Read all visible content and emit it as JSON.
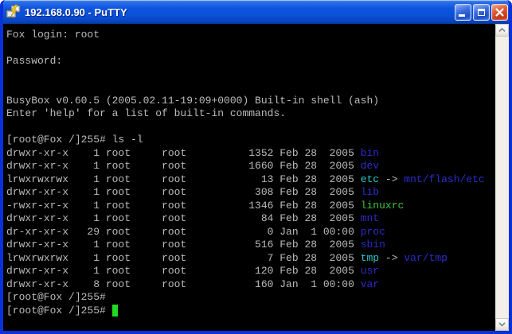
{
  "colors": {
    "borderBlue": "#0831D9",
    "titlebarBlue": "#0A50D8",
    "closeRed": "#D8502E",
    "controlBlue": "#2E64DC",
    "bg": "#000000",
    "fg": "#BBBBBB",
    "dir": "#2C2CC8",
    "link": "#2EC4C4",
    "exec": "#3CC23C",
    "cursor": "#22DB22",
    "scrollTrack": "#F2F0E9"
  },
  "titlebar": {
    "title": "192.168.0.90 - PuTTY",
    "icon": "putty-terminals-icon",
    "buttons": [
      {
        "name": "minimize-button",
        "icon": "minimize-icon"
      },
      {
        "name": "maximize-button",
        "icon": "maximize-icon"
      },
      {
        "name": "close-button",
        "icon": "close-icon"
      }
    ]
  },
  "scrollbar": {
    "up_icon": "chevron-up-icon",
    "down_icon": "chevron-down-icon"
  },
  "terminal": {
    "lines": [
      [
        {
          "t": "Fox login: root",
          "c": "fg"
        }
      ],
      [],
      [
        {
          "t": "Password:",
          "c": "fg"
        }
      ],
      [],
      [],
      [
        {
          "t": "BusyBox v0.60.5 (2005.02.11-19:09+0000) Built-in shell (ash)",
          "c": "fg"
        }
      ],
      [
        {
          "t": "Enter 'help' for a list of built-in commands.",
          "c": "fg"
        }
      ],
      [],
      [
        {
          "t": "[root@Fox /]255# ls -l",
          "c": "fg"
        }
      ],
      [
        {
          "t": "drwxr-xr-x    1 root     root          1352 Feb 28  2005 ",
          "c": "fg"
        },
        {
          "t": "bin",
          "c": "dir"
        }
      ],
      [
        {
          "t": "drwxr-xr-x    1 root     root          1660 Feb 28  2005 ",
          "c": "fg"
        },
        {
          "t": "dev",
          "c": "dir"
        }
      ],
      [
        {
          "t": "lrwxrwxrwx    1 root     root            13 Feb 28  2005 ",
          "c": "fg"
        },
        {
          "t": "etc",
          "c": "link"
        },
        {
          "t": " -> ",
          "c": "fg"
        },
        {
          "t": "mnt/flash/etc",
          "c": "dir"
        }
      ],
      [
        {
          "t": "drwxr-xr-x    1 root     root           308 Feb 28  2005 ",
          "c": "fg"
        },
        {
          "t": "lib",
          "c": "dir"
        }
      ],
      [
        {
          "t": "-rwxr-xr-x    1 root     root          1346 Feb 28  2005 ",
          "c": "fg"
        },
        {
          "t": "linuxrc",
          "c": "exec"
        }
      ],
      [
        {
          "t": "drwxr-xr-x    1 root     root            84 Feb 28  2005 ",
          "c": "fg"
        },
        {
          "t": "mnt",
          "c": "dir"
        }
      ],
      [
        {
          "t": "dr-xr-xr-x   29 root     root             0 Jan  1 00:00 ",
          "c": "fg"
        },
        {
          "t": "proc",
          "c": "dir"
        }
      ],
      [
        {
          "t": "drwxr-xr-x    1 root     root           516 Feb 28  2005 ",
          "c": "fg"
        },
        {
          "t": "sbin",
          "c": "dir"
        }
      ],
      [
        {
          "t": "lrwxrwxrwx    1 root     root             7 Feb 28  2005 ",
          "c": "fg"
        },
        {
          "t": "tmp",
          "c": "link"
        },
        {
          "t": " -> ",
          "c": "fg"
        },
        {
          "t": "var/tmp",
          "c": "dir"
        }
      ],
      [
        {
          "t": "drwxr-xr-x    1 root     root           120 Feb 28  2005 ",
          "c": "fg"
        },
        {
          "t": "usr",
          "c": "dir"
        }
      ],
      [
        {
          "t": "drwxr-xr-x    8 root     root           160 Jan  1 00:00 ",
          "c": "fg"
        },
        {
          "t": "var",
          "c": "dir"
        }
      ],
      [
        {
          "t": "[root@Fox /]255#",
          "c": "fg"
        }
      ],
      [
        {
          "t": "[root@Fox /]255# ",
          "c": "fg"
        },
        {
          "t": " ",
          "c": "cursor"
        }
      ]
    ]
  }
}
